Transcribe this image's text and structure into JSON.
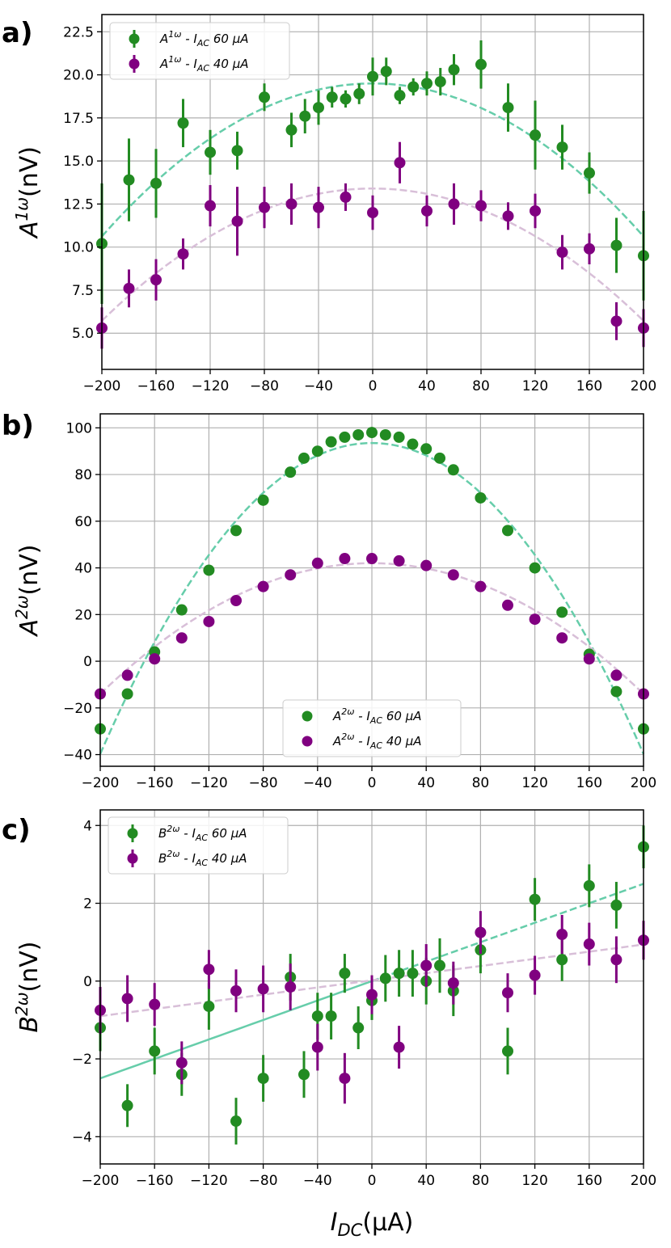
{
  "figure": {
    "panel_labels": [
      "a)",
      "b)",
      "c)"
    ],
    "xlabel": "I_DC(μA)",
    "xlabel_parts": {
      "main": "I",
      "sub": "DC",
      "rest": "(μA)"
    }
  },
  "colors": {
    "green_points": "#228b22",
    "purple_points": "#800080",
    "green_fit": "#66cdaa",
    "purple_fit": "#d8bfd8",
    "grid": "#b0b0b0"
  },
  "chart_data": [
    {
      "type": "scatter",
      "panel": "a)",
      "ylabel": "A^{1ω}(nV)",
      "ylabel_parts": {
        "main": "A",
        "sup": "1ω",
        "rest": "(nV)"
      },
      "xlim": [
        -200,
        200
      ],
      "ylim": [
        2.9,
        23.5
      ],
      "xticks": [
        -200,
        -160,
        -120,
        -80,
        -40,
        0,
        40,
        80,
        120,
        160,
        200
      ],
      "xtick_labels": [
        "−200",
        "−160",
        "−120",
        "−80",
        "−40",
        "0",
        "40",
        "80",
        "120",
        "160",
        "200"
      ],
      "yticks": [
        5.0,
        7.5,
        10.0,
        12.5,
        15.0,
        17.5,
        20.0,
        22.5
      ],
      "ytick_labels": [
        "5.0",
        "7.5",
        "10.0",
        "12.5",
        "15.0",
        "17.5",
        "20.0",
        "22.5"
      ],
      "grid": true,
      "legend": [
        {
          "sym": "A",
          "sup": "1ω",
          "mid": " - I",
          "sub": "AC",
          "rest": " 60 μA"
        },
        {
          "sym": "A",
          "sup": "1ω",
          "mid": " - I",
          "sub": "AC",
          "rest": " 40 μA"
        }
      ],
      "legend_position": "top-left",
      "series": [
        {
          "name": "A1ω - IAC 60 μA",
          "color_key": "green_points",
          "x": [
            -200,
            -180,
            -160,
            -140,
            -120,
            -100,
            -80,
            -60,
            -50,
            -40,
            -30,
            -20,
            -10,
            0,
            10,
            20,
            30,
            40,
            50,
            60,
            80,
            100,
            120,
            140,
            160,
            180,
            200
          ],
          "y": [
            10.2,
            13.9,
            13.7,
            17.2,
            15.5,
            15.6,
            18.7,
            16.8,
            17.6,
            18.1,
            18.7,
            18.6,
            18.9,
            19.9,
            20.2,
            18.8,
            19.3,
            19.5,
            19.6,
            20.3,
            20.6,
            18.1,
            16.5,
            15.8,
            14.3,
            10.1,
            9.5
          ],
          "err": [
            3.5,
            2.4,
            2.0,
            1.4,
            1.3,
            1.1,
            0.8,
            1.0,
            1.0,
            1.0,
            0.6,
            0.5,
            0.6,
            1.1,
            0.8,
            0.5,
            0.5,
            0.7,
            0.8,
            0.9,
            1.4,
            1.4,
            2.0,
            1.3,
            1.2,
            1.6,
            2.6
          ]
        },
        {
          "name": "A1ω - IAC 40 μA",
          "color_key": "purple_points",
          "x": [
            -200,
            -180,
            -160,
            -140,
            -120,
            -100,
            -80,
            -60,
            -40,
            -20,
            0,
            20,
            40,
            60,
            80,
            100,
            120,
            140,
            160,
            180,
            200
          ],
          "y": [
            5.3,
            7.6,
            8.1,
            9.6,
            12.4,
            11.5,
            12.3,
            12.5,
            12.3,
            12.9,
            12.0,
            14.9,
            12.1,
            12.5,
            12.4,
            11.8,
            12.1,
            9.7,
            9.9,
            5.7,
            5.3
          ],
          "err": [
            1.2,
            1.1,
            1.2,
            0.9,
            1.2,
            2.0,
            1.2,
            1.2,
            1.2,
            0.8,
            1.0,
            1.2,
            0.9,
            1.2,
            0.9,
            0.8,
            1.0,
            1.0,
            0.9,
            1.1,
            1.1
          ]
        }
      ],
      "fits": [
        {
          "name": "fit 60 μA",
          "color_key": "green_fit",
          "form": "quadratic",
          "a": -0.000222,
          "b": 0,
          "c": 19.5,
          "range": [
            -200,
            200
          ]
        },
        {
          "name": "fit 40 μA",
          "color_key": "purple_fit",
          "form": "quadratic",
          "a": -0.000192,
          "b": 0,
          "c": 13.4,
          "range": [
            -200,
            200
          ]
        }
      ]
    },
    {
      "type": "scatter",
      "panel": "b)",
      "ylabel": "A^{2ω}(nV)",
      "ylabel_parts": {
        "main": "A",
        "sup": "2ω",
        "rest": "(nV)"
      },
      "xlim": [
        -200,
        200
      ],
      "ylim": [
        -45,
        106
      ],
      "xticks": [
        -200,
        -160,
        -120,
        -80,
        -40,
        0,
        40,
        80,
        120,
        160,
        200
      ],
      "xtick_labels": [
        "−200",
        "−160",
        "−120",
        "−80",
        "−40",
        "0",
        "40",
        "80",
        "120",
        "160",
        "200"
      ],
      "yticks": [
        -40,
        -20,
        0,
        20,
        40,
        60,
        80,
        100
      ],
      "ytick_labels": [
        "−40",
        "−20",
        "0",
        "20",
        "40",
        "60",
        "80",
        "100"
      ],
      "grid": true,
      "legend": [
        {
          "sym": "A",
          "sup": "2ω",
          "mid": " - I",
          "sub": "AC",
          "rest": " 60 μA"
        },
        {
          "sym": "A",
          "sup": "2ω",
          "mid": " - I",
          "sub": "AC",
          "rest": " 40 μA"
        }
      ],
      "legend_position": "bottom-center",
      "series": [
        {
          "name": "A2ω - IAC 60 μA",
          "color_key": "green_points",
          "x": [
            -200,
            -180,
            -160,
            -140,
            -120,
            -100,
            -80,
            -60,
            -50,
            -40,
            -30,
            -20,
            -10,
            0,
            10,
            20,
            30,
            40,
            50,
            60,
            80,
            100,
            120,
            140,
            160,
            180,
            200
          ],
          "y": [
            -29,
            -14,
            4,
            22,
            39,
            56,
            69,
            81,
            87,
            90,
            94,
            96,
            97,
            98,
            97,
            96,
            93,
            91,
            87,
            82,
            70,
            56,
            40,
            21,
            3,
            -13,
            -29
          ],
          "err": [
            0.6,
            0.6,
            0.6,
            0.6,
            0.6,
            0.6,
            0.6,
            0.6,
            0.6,
            0.6,
            0.6,
            0.6,
            0.6,
            0.6,
            0.6,
            0.6,
            0.6,
            0.6,
            0.6,
            0.6,
            0.6,
            0.6,
            0.6,
            0.6,
            0.6,
            0.6,
            0.6
          ]
        },
        {
          "name": "A2ω - IAC 40 μA",
          "color_key": "purple_points",
          "x": [
            -200,
            -180,
            -160,
            -140,
            -120,
            -100,
            -80,
            -60,
            -40,
            -20,
            0,
            20,
            40,
            60,
            80,
            100,
            120,
            140,
            160,
            180,
            200
          ],
          "y": [
            -14,
            -6,
            1,
            10,
            17,
            26,
            32,
            37,
            42,
            44,
            44,
            43,
            41,
            37,
            32,
            24,
            18,
            10,
            1,
            -6,
            -14
          ],
          "err": [
            0.6,
            0.6,
            0.6,
            0.6,
            0.6,
            0.6,
            0.6,
            0.6,
            0.6,
            0.6,
            0.6,
            0.6,
            0.6,
            0.6,
            0.6,
            0.6,
            0.6,
            0.6,
            0.6,
            0.6,
            0.6
          ]
        }
      ],
      "fits": [
        {
          "name": "fit 60 μA",
          "color_key": "green_fit",
          "form": "quadratic",
          "a": -0.00333,
          "b": 0,
          "c": 93.5,
          "range": [
            -200,
            200
          ]
        },
        {
          "name": "fit 40 μA",
          "color_key": "purple_fit",
          "form": "quadratic",
          "a": -0.0014,
          "b": 0,
          "c": 42.0,
          "range": [
            -200,
            200
          ]
        }
      ]
    },
    {
      "type": "scatter",
      "panel": "c)",
      "ylabel": "B^{2ω}(nV)",
      "ylabel_parts": {
        "main": "B",
        "sup": "2ω",
        "rest": "(nV)"
      },
      "xlim": [
        -200,
        200
      ],
      "ylim": [
        -4.7,
        4.4
      ],
      "xticks": [
        -200,
        -160,
        -120,
        -80,
        -40,
        0,
        40,
        80,
        120,
        160,
        200
      ],
      "xtick_labels": [
        "−200",
        "−160",
        "−120",
        "−80",
        "−40",
        "0",
        "40",
        "80",
        "120",
        "160",
        "200"
      ],
      "yticks": [
        -4,
        -2,
        0,
        2,
        4
      ],
      "ytick_labels": [
        "−4",
        "−2",
        "0",
        "2",
        "4"
      ],
      "grid": true,
      "legend": [
        {
          "sym": "B",
          "sup": "2ω",
          "mid": " - I",
          "sub": "AC",
          "rest": " 60 μA"
        },
        {
          "sym": "B",
          "sup": "2ω",
          "mid": " - I",
          "sub": "AC",
          "rest": " 40 μA"
        }
      ],
      "legend_position": "top-left",
      "series": [
        {
          "name": "B2ω - IAC 60 μA",
          "color_key": "green_points",
          "x": [
            -200,
            -180,
            -160,
            -140,
            -120,
            -100,
            -80,
            -60,
            -50,
            -40,
            -30,
            -20,
            -10,
            0,
            10,
            20,
            30,
            40,
            50,
            60,
            80,
            100,
            120,
            140,
            160,
            180,
            200
          ],
          "y": [
            -1.2,
            -3.2,
            -1.8,
            -2.4,
            -0.65,
            -3.6,
            -2.5,
            0.1,
            -2.4,
            -0.9,
            -0.9,
            0.2,
            -1.2,
            -0.5,
            0.07,
            0.2,
            0.2,
            0.0,
            0.4,
            -0.25,
            0.8,
            -1.8,
            2.1,
            0.55,
            2.45,
            1.95,
            3.45
          ],
          "err": [
            0.6,
            0.55,
            0.6,
            0.55,
            0.6,
            0.6,
            0.6,
            0.6,
            0.6,
            0.6,
            0.6,
            0.5,
            0.55,
            0.5,
            0.6,
            0.6,
            0.6,
            0.6,
            0.7,
            0.65,
            0.6,
            0.6,
            0.55,
            0.55,
            0.55,
            0.6,
            0.55
          ]
        },
        {
          "name": "B2ω - IAC 40 μA",
          "color_key": "purple_points",
          "x": [
            -200,
            -180,
            -160,
            -140,
            -120,
            -100,
            -80,
            -60,
            -40,
            -20,
            0,
            20,
            40,
            60,
            80,
            100,
            120,
            140,
            160,
            180,
            200
          ],
          "y": [
            -0.75,
            -0.45,
            -0.6,
            -2.1,
            0.3,
            -0.25,
            -0.2,
            -0.15,
            -1.7,
            -2.5,
            -0.35,
            -1.7,
            0.4,
            -0.05,
            1.25,
            -0.3,
            0.15,
            1.2,
            0.95,
            0.55,
            1.05
          ],
          "err": [
            0.6,
            0.6,
            0.55,
            0.55,
            0.5,
            0.55,
            0.6,
            0.6,
            0.6,
            0.65,
            0.5,
            0.55,
            0.55,
            0.55,
            0.55,
            0.5,
            0.5,
            0.5,
            0.55,
            0.6,
            0.5
          ]
        }
      ],
      "fits": [
        {
          "name": "fit 60 μA",
          "color_key": "green_fit",
          "form": "linear",
          "m": 0.0125,
          "k": 0,
          "range": [
            -200,
            200
          ],
          "solid_until": 0
        },
        {
          "name": "fit 40 μA",
          "color_key": "purple_fit",
          "form": "linear",
          "m": 0.0046,
          "k": 0.02,
          "range": [
            -200,
            200
          ]
        }
      ]
    }
  ]
}
